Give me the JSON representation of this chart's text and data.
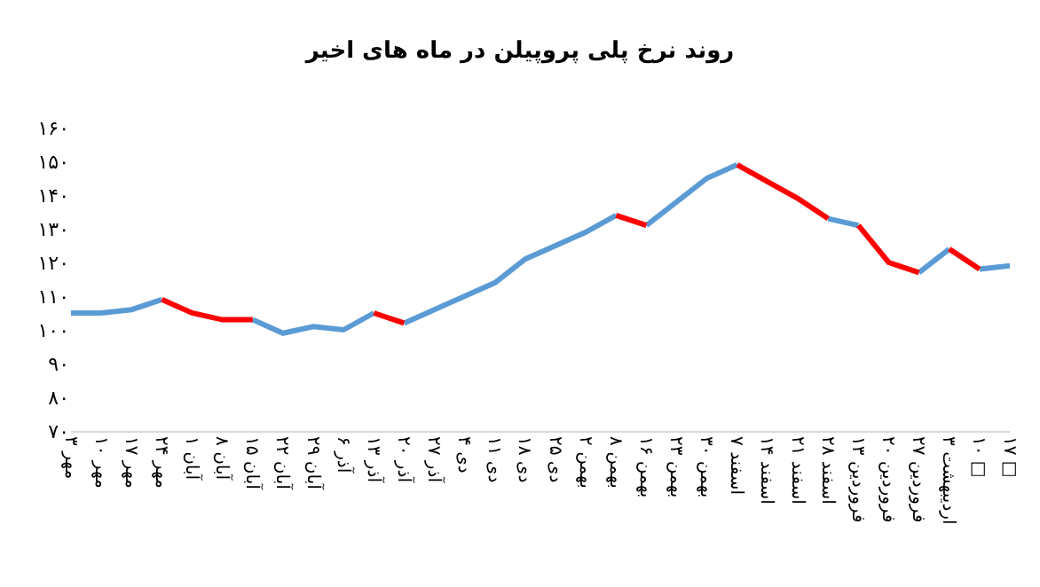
{
  "chart_data": {
    "type": "line",
    "title": "روند نرخ پلی پروپیلن در ماه های اخیر",
    "categories": [
      "۳ مهر",
      "۱۰ مهر",
      "۱۷ مهر",
      "۲۴ مهر",
      "۱ آبان",
      "۸ آبان",
      "۱۵ آبان",
      "۲۲ آبان",
      "۲۹ آبان",
      "۶ آذر",
      "۱۳ آذر",
      "۲۰ آذر",
      "۲۷ آذر",
      "۴ دی",
      "۱۱ دی",
      "۱۸ دی",
      "۲۵ دی",
      "۲ بهمن",
      "۸ بهمن",
      "۱۶ بهمن",
      "۲۳ بهمن",
      "۳۰ بهمن",
      "۷ اسفند",
      "۱۴ اسفند",
      "۲۱ اسفند",
      "۲۸ اسفند",
      "۱۳ فروردین",
      "۲۰ فروردین",
      "۲۷ فروردین",
      "۳ اردیبهشت",
      "۱۰ □",
      "۱۷ □"
    ],
    "series": [
      {
        "color": "#5b9bd5",
        "values": [
          105,
          105,
          106,
          109,
          null,
          null,
          null,
          null,
          null,
          null,
          null,
          102,
          106,
          110,
          114,
          121,
          125,
          129,
          134,
          null,
          null,
          null,
          null,
          null,
          null,
          133,
          131,
          null,
          null,
          null,
          118,
          119
        ]
      },
      {
        "color": "#5b9bd5",
        "values": [
          null,
          null,
          null,
          null,
          null,
          null,
          103,
          99,
          101,
          100,
          105,
          null,
          null,
          null,
          null,
          null,
          null,
          null,
          null,
          131,
          138,
          145,
          149,
          null,
          null,
          null,
          null,
          null,
          117,
          124,
          null,
          null
        ]
      },
      {
        "color": "#ff0000",
        "values": [
          null,
          null,
          null,
          109,
          105,
          103,
          103,
          null,
          null,
          null,
          null,
          null,
          null,
          null,
          null,
          null,
          null,
          null,
          134,
          131,
          null,
          null,
          null,
          null,
          null,
          null,
          131,
          120,
          117,
          null,
          null,
          null
        ]
      },
      {
        "color": "#ff0000",
        "values": [
          null,
          null,
          null,
          null,
          null,
          null,
          null,
          null,
          null,
          null,
          105,
          102,
          null,
          null,
          null,
          null,
          null,
          null,
          null,
          null,
          null,
          null,
          149,
          144,
          139,
          133,
          null,
          null,
          null,
          124,
          118,
          null
        ]
      }
    ],
    "ylim": [
      70,
      160
    ],
    "yticks": [
      {
        "value": 70,
        "label": "۷۰"
      },
      {
        "value": 80,
        "label": "۸۰"
      },
      {
        "value": 90,
        "label": "۹۰"
      },
      {
        "value": 100,
        "label": "۱۰۰"
      },
      {
        "value": 110,
        "label": "۱۱۰"
      },
      {
        "value": 120,
        "label": "۱۲۰"
      },
      {
        "value": 130,
        "label": "۱۳۰"
      },
      {
        "value": 140,
        "label": "۱۴۰"
      },
      {
        "value": 150,
        "label": "۱۵۰"
      },
      {
        "value": 160,
        "label": "۱۶۰"
      }
    ],
    "grid": false,
    "marker": "none",
    "line_style": "solid"
  }
}
